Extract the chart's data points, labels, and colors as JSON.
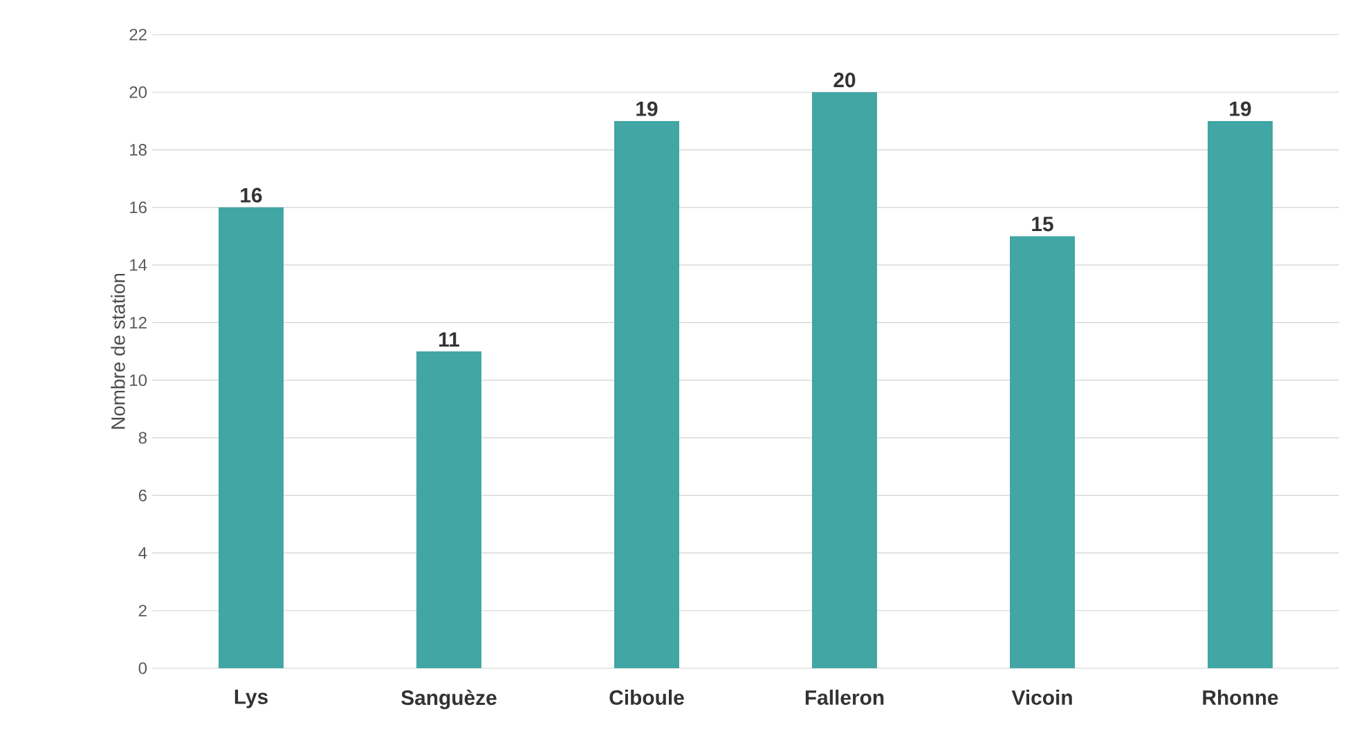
{
  "chart_data": {
    "type": "bar",
    "ylabel": "Nombre de station",
    "categories": [
      "Lys",
      "Sanguèze",
      "Ciboule",
      "Falleron",
      "Vicoin",
      "Rhonne"
    ],
    "values": [
      16,
      11,
      19,
      20,
      15,
      19
    ],
    "color": "#41a6a4",
    "ylim": [
      0,
      22
    ],
    "yticks": [
      0,
      2,
      4,
      6,
      8,
      10,
      12,
      14,
      16,
      18,
      20,
      22
    ],
    "grid": "y",
    "data_labels": true
  }
}
